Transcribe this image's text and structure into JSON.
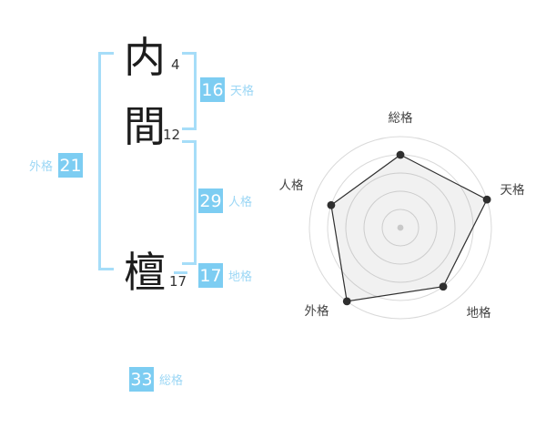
{
  "name_analysis": {
    "characters": [
      {
        "char": "内",
        "strokes": "4"
      },
      {
        "char": "間",
        "strokes": "12"
      },
      {
        "char": "檀",
        "strokes": "17"
      }
    ],
    "kaku": {
      "tenkaku": {
        "value": "16",
        "label": "天格"
      },
      "jinkaku": {
        "value": "29",
        "label": "人格"
      },
      "chikaku": {
        "value": "17",
        "label": "地格"
      },
      "gaikaku": {
        "value": "21",
        "label": "外格"
      },
      "soukaku": {
        "value": "33",
        "label": "総格"
      }
    },
    "colors": {
      "badge": "#7dcdf2",
      "badge_text": "#ffffff",
      "label_text": "#9cd7f5",
      "bracket": "#a6ddf8"
    }
  },
  "chart_data": {
    "type": "radar",
    "title": "",
    "categories": [
      "総格",
      "天格",
      "地格",
      "外格",
      "人格"
    ],
    "values": [
      4,
      5,
      4,
      5,
      4
    ],
    "max": 5,
    "rings": 5,
    "grid": "concentric-circles",
    "legend": false,
    "colors": {
      "ring": "#d9d9d9",
      "polygon_stroke": "#2f2f2f",
      "polygon_fill": "rgba(0,0,0,0.055)",
      "point": "#2f2f2f",
      "center_dot": "#c8c8c8",
      "label": "#444444"
    }
  }
}
